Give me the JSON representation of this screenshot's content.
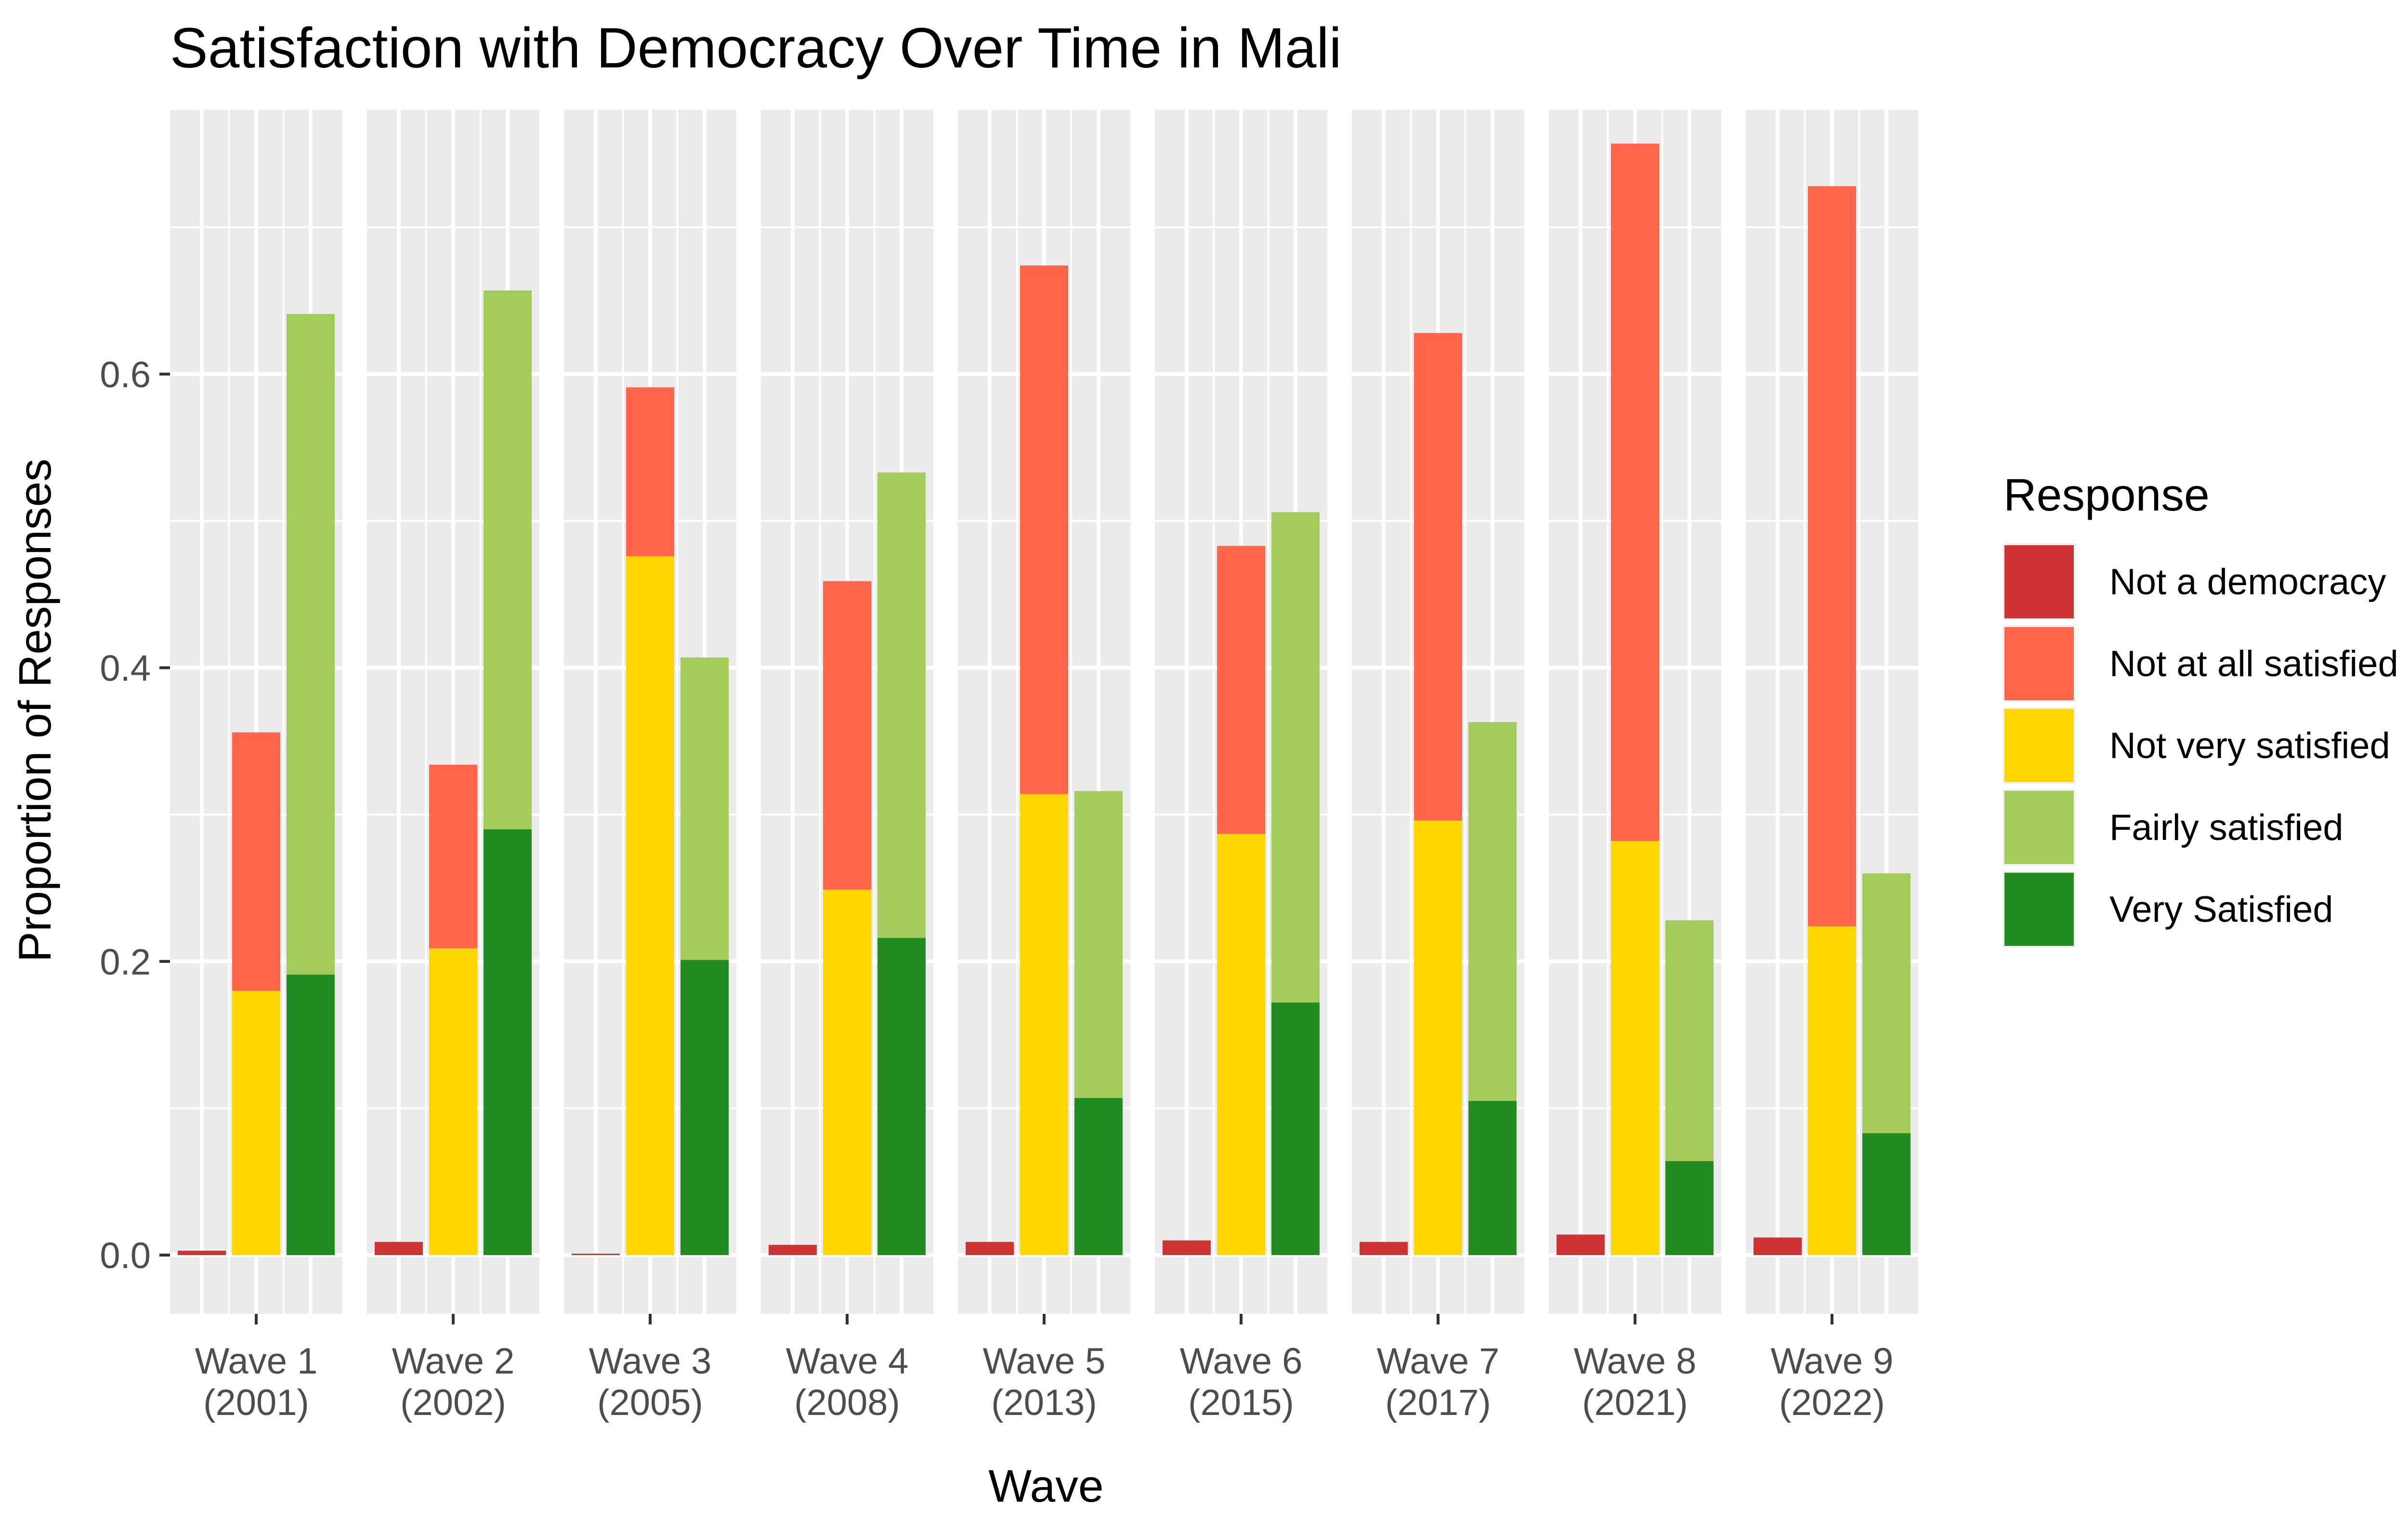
{
  "chart_data": {
    "type": "bar",
    "title": "Satisfaction with Democracy Over Time in Mali",
    "xlabel": "Wave",
    "ylabel": "Proportion of Responses",
    "ylim": [
      -0.04,
      0.78
    ],
    "yticks": [
      {
        "value": 0.0,
        "label": "0.0"
      },
      {
        "value": 0.2,
        "label": "0.2"
      },
      {
        "value": 0.4,
        "label": "0.4"
      },
      {
        "value": 0.6,
        "label": "0.6"
      }
    ],
    "grid": true,
    "legend": {
      "title": "Response",
      "position": "right",
      "entries": [
        {
          "name": "Not a democracy",
          "color": "#cf3434"
        },
        {
          "name": "Not at all satisfied",
          "color": "#ff654b"
        },
        {
          "name": "Not very satisfied",
          "color": "#ffd700"
        },
        {
          "name": "Fairly satisfied",
          "color": "#a3cc5c"
        },
        {
          "name": "Very Satisfied",
          "color": "#228b22"
        }
      ]
    },
    "facets": [
      {
        "line1": "Wave 1",
        "line2": "(2001)",
        "not_a_democracy": 0.003,
        "not_at_all_satisfied": 0.356,
        "not_very_satisfied": 0.18,
        "fairly_satisfied": 0.641,
        "very_satisfied": 0.191
      },
      {
        "line1": "Wave 2",
        "line2": "(2002)",
        "not_a_democracy": 0.009,
        "not_at_all_satisfied": 0.334,
        "not_very_satisfied": 0.209,
        "fairly_satisfied": 0.657,
        "very_satisfied": 0.29
      },
      {
        "line1": "Wave 3",
        "line2": "(2005)",
        "not_a_democracy": 0.001,
        "not_at_all_satisfied": 0.591,
        "not_very_satisfied": 0.476,
        "fairly_satisfied": 0.407,
        "very_satisfied": 0.201
      },
      {
        "line1": "Wave 4",
        "line2": "(2008)",
        "not_a_democracy": 0.007,
        "not_at_all_satisfied": 0.459,
        "not_very_satisfied": 0.249,
        "fairly_satisfied": 0.533,
        "very_satisfied": 0.216
      },
      {
        "line1": "Wave 5",
        "line2": "(2013)",
        "not_a_democracy": 0.009,
        "not_at_all_satisfied": 0.674,
        "not_very_satisfied": 0.314,
        "fairly_satisfied": 0.316,
        "very_satisfied": 0.107
      },
      {
        "line1": "Wave 6",
        "line2": "(2015)",
        "not_a_democracy": 0.01,
        "not_at_all_satisfied": 0.483,
        "not_very_satisfied": 0.287,
        "fairly_satisfied": 0.506,
        "very_satisfied": 0.172
      },
      {
        "line1": "Wave 7",
        "line2": "(2017)",
        "not_a_democracy": 0.009,
        "not_at_all_satisfied": 0.628,
        "not_very_satisfied": 0.296,
        "fairly_satisfied": 0.363,
        "very_satisfied": 0.105
      },
      {
        "line1": "Wave 8",
        "line2": "(2021)",
        "not_a_democracy": 0.014,
        "not_at_all_satisfied": 0.757,
        "not_very_satisfied": 0.282,
        "fairly_satisfied": 0.228,
        "very_satisfied": 0.064
      },
      {
        "line1": "Wave 9",
        "line2": "(2022)",
        "not_a_democracy": 0.012,
        "not_at_all_satisfied": 0.728,
        "not_very_satisfied": 0.224,
        "fairly_satisfied": 0.26,
        "very_satisfied": 0.083
      }
    ]
  }
}
